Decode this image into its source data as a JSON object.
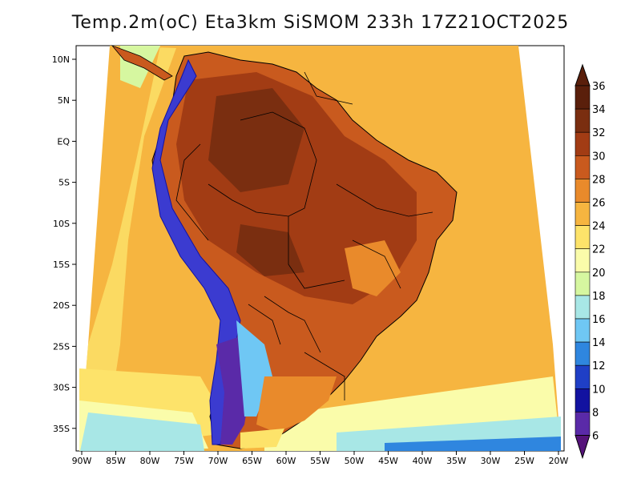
{
  "title": "Temp.2m(oC) Eta3km SiSMOM 233h 17Z21OCT2025",
  "lat_ticks": [
    "10N",
    "5N",
    "EQ",
    "5S",
    "10S",
    "15S",
    "20S",
    "25S",
    "30S",
    "35S"
  ],
  "lon_ticks": [
    "90W",
    "85W",
    "80W",
    "75W",
    "70W",
    "65W",
    "60W",
    "55W",
    "50W",
    "45W",
    "40W",
    "35W",
    "30W",
    "25W",
    "20W"
  ],
  "colorbar": {
    "labels": [
      "36",
      "34",
      "32",
      "30",
      "28",
      "26",
      "24",
      "22",
      "20",
      "18",
      "16",
      "14",
      "12",
      "10",
      "8",
      "6"
    ],
    "colors": [
      "#5a1f0b",
      "#7a2e10",
      "#a23c14",
      "#c95a1e",
      "#e98a2b",
      "#f6b540",
      "#fde36a",
      "#fafcaa",
      "#d6f7a0",
      "#a8e7e6",
      "#6fc7f4",
      "#2f86df",
      "#1f3fc6",
      "#1212a0",
      "#5a2aa8",
      "#8f3dc4",
      "#b34fcf",
      "#55137a"
    ],
    "bottom_color": "#55137a",
    "top_color": "#5a1f0b"
  },
  "map": {
    "ocean_color": "#f6b540",
    "land_hot_color": "#a23c14",
    "land_warm_color": "#c95a1e",
    "andes_cold_color": "#3b3bd0",
    "south_cool_color": "#6fc7f4"
  }
}
